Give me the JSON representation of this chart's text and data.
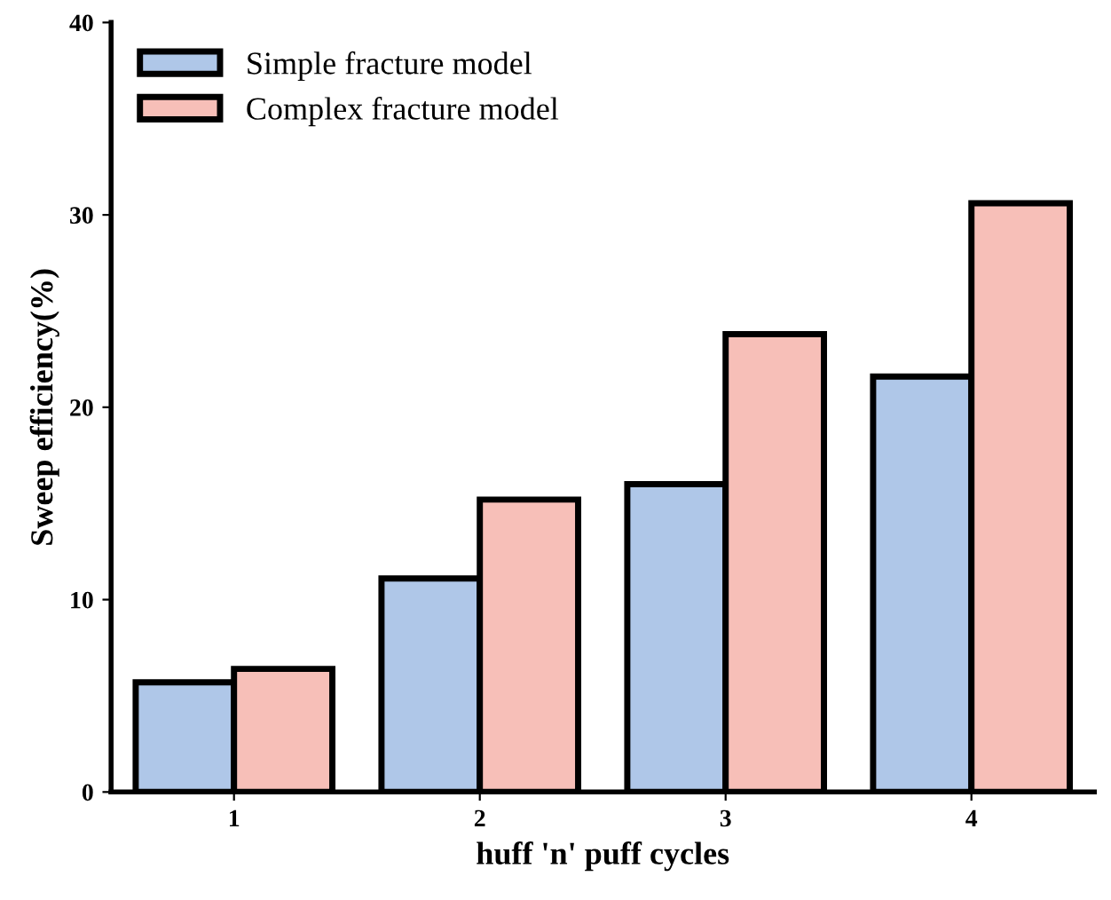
{
  "chart_data": {
    "type": "bar",
    "xlabel": "huff 'n' puff cycles",
    "ylabel": "Sweep efficiency(%)",
    "categories": [
      "1",
      "2",
      "3",
      "4"
    ],
    "series": [
      {
        "name": "Simple fracture model",
        "color": "#afc7e8",
        "values": [
          5.7,
          11.1,
          16.0,
          21.6
        ]
      },
      {
        "name": "Complex fracture model",
        "color": "#f7bfb8",
        "values": [
          6.4,
          15.2,
          23.8,
          30.6
        ]
      }
    ],
    "ylim": [
      0,
      40
    ],
    "yticks": [
      0,
      10,
      20,
      30,
      40
    ],
    "grid": false,
    "legend": "top left"
  }
}
